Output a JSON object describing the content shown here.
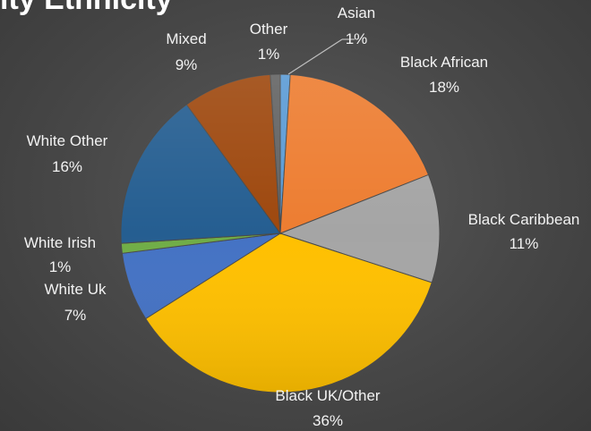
{
  "title": "ity Ethnicity",
  "chart_data": {
    "type": "pie",
    "title": "ity Ethnicity",
    "start_angle_deg": 0,
    "slices": [
      {
        "name": "Asian",
        "value": 1,
        "label": "1%",
        "color": "#5b9bd5"
      },
      {
        "name": "Black African",
        "value": 18,
        "label": "18%",
        "color": "#ed7d31"
      },
      {
        "name": "Black Caribbean",
        "value": 11,
        "label": "11%",
        "color": "#a5a5a5"
      },
      {
        "name": "Black UK/Other",
        "value": 36,
        "label": "36%",
        "color": "#ffc000"
      },
      {
        "name": "White Uk",
        "value": 7,
        "label": "7%",
        "color": "#4472c4"
      },
      {
        "name": "White Irish",
        "value": 1,
        "label": "1%",
        "color": "#70ad47"
      },
      {
        "name": "White Other",
        "value": 16,
        "label": "16%",
        "color": "#255e91"
      },
      {
        "name": "Mixed",
        "value": 9,
        "label": "9%",
        "color": "#9e480e"
      },
      {
        "name": "Other",
        "value": 1,
        "label": "1%",
        "color": "#636363"
      }
    ]
  }
}
